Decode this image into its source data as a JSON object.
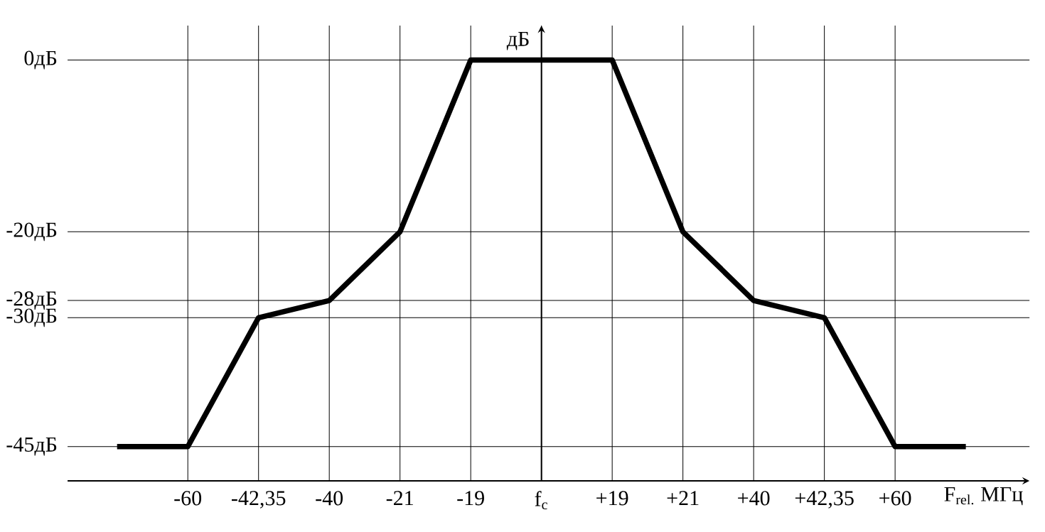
{
  "chart_data": {
    "type": "line",
    "ylabel": "дБ",
    "xlabel": "F$_{rel.}$ МГц",
    "categories": [
      null,
      "-60",
      "-42,35",
      "-40",
      "-21",
      "-19",
      "f$_{c}$",
      "+19",
      "+21",
      "+40",
      "+42,35",
      "+60",
      null
    ],
    "values": [
      -45,
      -45,
      -30,
      -28,
      -20,
      0,
      0,
      0,
      -20,
      -28,
      -30,
      -45,
      -45
    ],
    "color": "#000000",
    "ylim": [
      -49,
      4
    ],
    "yticks": [
      {
        "value": 0,
        "label": "0дБ"
      },
      {
        "value": -20,
        "label": "-20дБ"
      },
      {
        "value": -28,
        "label": "-28дБ"
      },
      {
        "value": -30,
        "label": "-30дБ"
      },
      {
        "value": -45,
        "label": "-45дБ"
      }
    ],
    "ref_lines": [
      {
        "axis": "x",
        "value": "f$_{c}$",
        "color": "#000000"
      }
    ],
    "grid": true,
    "marker": "none",
    "line_style": "solid"
  }
}
